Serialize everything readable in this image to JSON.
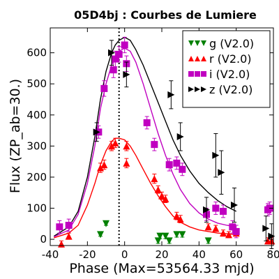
{
  "chart_data": {
    "type": "scatter",
    "title": "05D4bj : Courbes de Lumiere",
    "xlabel": "Phase (Max=53564.33 mjd)",
    "ylabel": "Flux (ZP_ab=30.)",
    "xlim": [
      -40,
      80
    ],
    "ylim": [
      -20,
      680
    ],
    "xticks": [
      -40,
      -20,
      0,
      20,
      40,
      60,
      80
    ],
    "yticks": [
      0,
      100,
      200,
      300,
      400,
      500,
      600
    ],
    "max_marker_x": -3,
    "legend_position": "top-right",
    "series": [
      {
        "name": "g (V2.0)",
        "color": "#008000",
        "marker": "triangle-down",
        "points": [
          {
            "x": -10,
            "y": 50,
            "err": 5
          },
          {
            "x": -13,
            "y": 15,
            "err": 5
          },
          {
            "x": 18,
            "y": -5,
            "err": 8
          },
          {
            "x": 19,
            "y": 10,
            "err": 8
          },
          {
            "x": 22,
            "y": 10,
            "err": 8
          },
          {
            "x": 24,
            "y": -5,
            "err": 8
          },
          {
            "x": 28,
            "y": 15,
            "err": 8
          },
          {
            "x": 31,
            "y": 15,
            "err": 8
          },
          {
            "x": 45,
            "y": -5,
            "err": 8
          }
        ]
      },
      {
        "name": "r (V2.0)",
        "color": "#ff0000",
        "marker": "triangle-up",
        "points": [
          {
            "x": -34,
            "y": -15,
            "err": 10
          },
          {
            "x": -30,
            "y": 10,
            "err": 10
          },
          {
            "x": -13,
            "y": 230,
            "err": 15
          },
          {
            "x": -11,
            "y": 240,
            "err": 15
          },
          {
            "x": -7,
            "y": 300,
            "err": 15
          },
          {
            "x": -5,
            "y": 310,
            "err": 15
          },
          {
            "x": 1,
            "y": 245,
            "err": 15
          },
          {
            "x": 1,
            "y": 300,
            "err": 15
          },
          {
            "x": 16,
            "y": 195,
            "err": 15
          },
          {
            "x": 18,
            "y": 160,
            "err": 12
          },
          {
            "x": 20,
            "y": 140,
            "err": 12
          },
          {
            "x": 22,
            "y": 130,
            "err": 12
          },
          {
            "x": 28,
            "y": 75,
            "err": 12
          },
          {
            "x": 30,
            "y": 65,
            "err": 12
          },
          {
            "x": 45,
            "y": 40,
            "err": 10
          },
          {
            "x": 49,
            "y": 35,
            "err": 10
          },
          {
            "x": 53,
            "y": 20,
            "err": 10
          },
          {
            "x": 56,
            "y": 15,
            "err": 10
          },
          {
            "x": 60,
            "y": 20,
            "err": 10
          },
          {
            "x": 77,
            "y": -5,
            "err": 10
          },
          {
            "x": 79,
            "y": -5,
            "err": 10
          }
        ]
      },
      {
        "name": "i (V2.0)",
        "color": "#c000c0",
        "marker": "square",
        "points": [
          {
            "x": -35,
            "y": 40,
            "err": 20
          },
          {
            "x": -30,
            "y": 45,
            "err": 20
          },
          {
            "x": -14,
            "y": 345,
            "err": 20
          },
          {
            "x": -11,
            "y": 485,
            "err": 25
          },
          {
            "x": -6,
            "y": 545,
            "err": 25
          },
          {
            "x": -5,
            "y": 580,
            "err": 25
          },
          {
            "x": -3,
            "y": 595,
            "err": 25
          },
          {
            "x": 0,
            "y": 625,
            "err": 25
          },
          {
            "x": 1,
            "y": 565,
            "err": 25
          },
          {
            "x": 12,
            "y": 375,
            "err": 20
          },
          {
            "x": 16,
            "y": 305,
            "err": 20
          },
          {
            "x": 24,
            "y": 240,
            "err": 20
          },
          {
            "x": 28,
            "y": 245,
            "err": 20
          },
          {
            "x": 31,
            "y": 225,
            "err": 20
          },
          {
            "x": 44,
            "y": 80,
            "err": 20
          },
          {
            "x": 49,
            "y": 100,
            "err": 20
          },
          {
            "x": 53,
            "y": 90,
            "err": 20
          },
          {
            "x": 58,
            "y": 40,
            "err": 20
          },
          {
            "x": 60,
            "y": 25,
            "err": 20
          },
          {
            "x": 77,
            "y": 95,
            "err": 20
          },
          {
            "x": 78,
            "y": 100,
            "err": 20
          }
        ]
      },
      {
        "name": "z (V2.0)",
        "color": "#000000",
        "marker": "triangle-right",
        "points": [
          {
            "x": -15,
            "y": 345,
            "err": 30
          },
          {
            "x": -7,
            "y": 600,
            "err": 40
          },
          {
            "x": 1,
            "y": 530,
            "err": 40
          },
          {
            "x": 25,
            "y": 465,
            "err": 45
          },
          {
            "x": 30,
            "y": 330,
            "err": 45
          },
          {
            "x": 44,
            "y": 95,
            "err": 40
          },
          {
            "x": 49,
            "y": 270,
            "err": 70
          },
          {
            "x": 52,
            "y": 215,
            "err": 70
          },
          {
            "x": 59,
            "y": 110,
            "err": 55
          },
          {
            "x": 76,
            "y": 35,
            "err": 40
          },
          {
            "x": 79,
            "y": 10,
            "err": 40
          }
        ]
      }
    ],
    "fits": [
      {
        "name": "z (V2.0)",
        "color": "#000000",
        "x": [
          -38,
          -30,
          -25,
          -20,
          -16,
          -13,
          -10,
          -7,
          -5,
          -3,
          0,
          3,
          6,
          10,
          14,
          18,
          22,
          26,
          30,
          35,
          40,
          45,
          50,
          55,
          60
        ],
        "y": [
          10,
          40,
          90,
          200,
          330,
          450,
          540,
          600,
          625,
          640,
          650,
          640,
          610,
          560,
          500,
          440,
          380,
          320,
          270,
          220,
          180,
          150,
          125,
          105,
          90
        ]
      },
      {
        "name": "i (V2.0)",
        "color": "#c000c0",
        "x": [
          -38,
          -30,
          -25,
          -20,
          -16,
          -13,
          -10,
          -7,
          -5,
          -3,
          0,
          3,
          6,
          10,
          14,
          18,
          22,
          26,
          30,
          35,
          40,
          45,
          50,
          55,
          60
        ],
        "y": [
          8,
          30,
          80,
          180,
          300,
          420,
          500,
          560,
          590,
          605,
          615,
          605,
          570,
          500,
          420,
          340,
          270,
          210,
          160,
          115,
          85,
          65,
          52,
          45,
          40
        ]
      },
      {
        "name": "r (V2.0)",
        "color": "#ff0000",
        "x": [
          -38,
          -30,
          -25,
          -20,
          -16,
          -13,
          -10,
          -7,
          -5,
          -3,
          0,
          3,
          6,
          10,
          14,
          18,
          22,
          26,
          30,
          35,
          40,
          45,
          50,
          55,
          60
        ],
        "y": [
          5,
          20,
          45,
          110,
          180,
          240,
          285,
          315,
          325,
          325,
          320,
          300,
          270,
          225,
          180,
          140,
          105,
          75,
          55,
          40,
          30,
          25,
          20,
          18,
          15
        ]
      }
    ]
  }
}
